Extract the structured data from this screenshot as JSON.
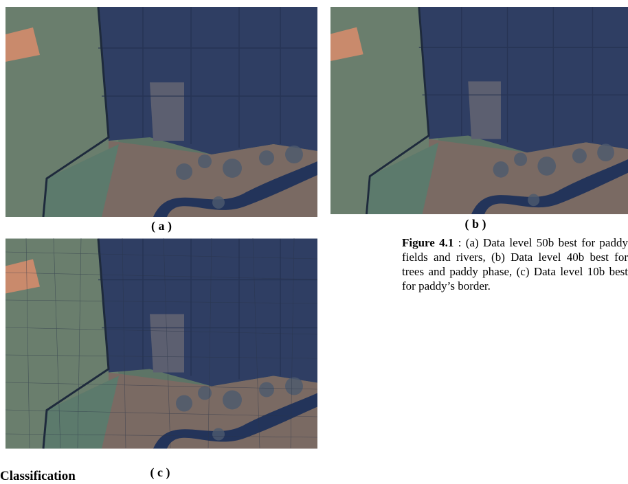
{
  "figure": {
    "panels": [
      {
        "label": "( a )"
      },
      {
        "label": "( b )"
      },
      {
        "label": "( c )"
      }
    ],
    "caption": {
      "prefix": "Figure 4.1",
      "text": " : (a) Data level 50b best for paddy fields and rivers, (b) Data level 40b best for trees and paddy phase, (c) Data level 10b best for paddy’s border."
    }
  },
  "section_heading": "Classification"
}
